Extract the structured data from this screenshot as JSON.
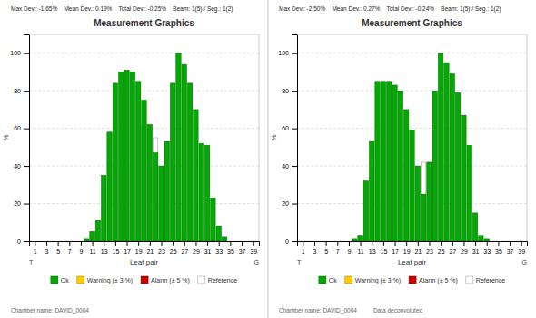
{
  "chart_data": [
    {
      "type": "bar",
      "title": "Measurement Graphics",
      "subtitle": "Max Dev.: -1.65%    Mean Dev.: 0.19%    Total Dev.: -0.25%    Beam: 1(5) / Seg.: 1(2)",
      "annotations": [
        "T",
        "G",
        "Chamber name: DAVID_0004"
      ],
      "x_label": "Leaf pair",
      "y_label": "%",
      "x": [
        1,
        2,
        3,
        4,
        5,
        6,
        7,
        8,
        9,
        10,
        11,
        12,
        13,
        14,
        15,
        16,
        17,
        18,
        19,
        20,
        21,
        22,
        23,
        24,
        25,
        26,
        27,
        28,
        29,
        30,
        31,
        32,
        33,
        34,
        35,
        36,
        37,
        38,
        39
      ],
      "series": [
        {
          "name": "Ok",
          "color": "#00aa00",
          "values": [
            0,
            0,
            0,
            0,
            0,
            0,
            0,
            0,
            0,
            1,
            5,
            11,
            35,
            58,
            84,
            90,
            91,
            90,
            85,
            75,
            62,
            47,
            40,
            53,
            84,
            100,
            94,
            84,
            70,
            52,
            51,
            23,
            8,
            2,
            0,
            0,
            0,
            0,
            0
          ]
        },
        {
          "name": "Warning (± 3 %)",
          "color": "#ffcc00",
          "values": [
            null,
            null,
            null,
            null,
            null,
            null,
            null,
            null,
            null,
            null,
            null,
            null,
            null,
            null,
            null,
            null,
            null,
            null,
            null,
            null,
            null,
            null,
            null,
            null,
            null,
            null,
            null,
            null,
            null,
            null,
            null,
            null,
            null,
            null,
            null,
            null,
            null,
            null,
            null
          ]
        },
        {
          "name": "Alarm (± 5 %)",
          "color": "#cc0000",
          "values": [
            null,
            null,
            null,
            null,
            null,
            null,
            null,
            null,
            null,
            null,
            null,
            null,
            null,
            null,
            null,
            null,
            null,
            null,
            null,
            null,
            null,
            null,
            null,
            null,
            null,
            null,
            null,
            null,
            null,
            null,
            null,
            null,
            null,
            null,
            null,
            null,
            null,
            null,
            null
          ]
        },
        {
          "name": "Reference",
          "color": "#ffffff",
          "values": [
            0,
            0,
            0,
            0,
            0,
            0,
            0,
            0,
            0,
            0,
            5,
            0,
            0,
            0,
            0,
            0,
            0,
            0,
            0,
            62,
            0,
            55,
            0,
            0,
            0,
            0,
            0,
            0,
            0,
            0,
            0,
            0,
            0,
            0,
            0,
            0,
            0,
            0,
            0
          ]
        }
      ],
      "xlim": [
        0,
        40
      ],
      "xticks": [
        1,
        3,
        5,
        7,
        9,
        11,
        13,
        15,
        17,
        19,
        21,
        23,
        25,
        27,
        29,
        31,
        33,
        35,
        37,
        39
      ],
      "ylim": [
        0,
        110
      ],
      "yticks": [
        0,
        20,
        40,
        60,
        80,
        100
      ],
      "grid": true,
      "legend": "bottom"
    },
    {
      "type": "bar",
      "title": "Measurement Graphics",
      "subtitle": "Max Dev.: -2.50%    Mean Dev.: 0.27%    Total Dev.: -0.24%    Beam: 1(5) / Seg.: 1(2)",
      "annotations": [
        "T",
        "G",
        "Chamber name: DAVID_0004          Data deconvoluted"
      ],
      "x_label": "Leaf pair",
      "y_label": "%",
      "x": [
        1,
        2,
        3,
        4,
        5,
        6,
        7,
        8,
        9,
        10,
        11,
        12,
        13,
        14,
        15,
        16,
        17,
        18,
        19,
        20,
        21,
        22,
        23,
        24,
        25,
        26,
        27,
        28,
        29,
        30,
        31,
        32,
        33,
        34,
        35,
        36,
        37,
        38,
        39
      ],
      "series": [
        {
          "name": "Ok",
          "color": "#00aa00",
          "values": [
            0,
            0,
            0,
            0,
            0,
            0,
            0,
            0,
            0,
            1,
            3,
            32,
            53,
            85,
            85,
            85,
            83,
            80,
            70,
            59,
            40,
            25,
            42,
            80,
            100,
            95,
            89,
            79,
            67,
            51,
            15,
            3,
            1,
            0,
            0,
            0,
            0,
            0,
            0
          ]
        },
        {
          "name": "Warning (± 3 %)",
          "color": "#ffcc00",
          "values": [
            null,
            null,
            null,
            null,
            null,
            null,
            null,
            null,
            null,
            null,
            null,
            null,
            null,
            null,
            null,
            null,
            null,
            null,
            null,
            null,
            null,
            null,
            null,
            null,
            null,
            null,
            null,
            null,
            null,
            null,
            null,
            null,
            null,
            null,
            null,
            null,
            null,
            null,
            null
          ]
        },
        {
          "name": "Alarm (± 5 %)",
          "color": "#cc0000",
          "values": [
            null,
            null,
            null,
            null,
            null,
            null,
            null,
            null,
            null,
            null,
            null,
            null,
            null,
            null,
            null,
            null,
            null,
            null,
            null,
            null,
            null,
            null,
            null,
            null,
            null,
            null,
            null,
            null,
            null,
            null,
            null,
            null,
            null,
            null,
            null,
            null,
            null,
            null,
            null
          ]
        },
        {
          "name": "Reference",
          "color": "#ffffff",
          "values": [
            0,
            0,
            0,
            0,
            0,
            0,
            0,
            0,
            0,
            0,
            3,
            0,
            0,
            0,
            0,
            0,
            0,
            0,
            0,
            0,
            0,
            42,
            0,
            0,
            0,
            0,
            0,
            0,
            0,
            0,
            0,
            0,
            0,
            0,
            0,
            0,
            0,
            0,
            0
          ]
        }
      ],
      "xlim": [
        0,
        40
      ],
      "xticks": [
        1,
        3,
        5,
        7,
        9,
        11,
        13,
        15,
        17,
        19,
        21,
        23,
        25,
        27,
        29,
        31,
        33,
        35,
        37,
        39
      ],
      "ylim": [
        0,
        110
      ],
      "yticks": [
        0,
        20,
        40,
        60,
        80,
        100
      ],
      "grid": true,
      "legend": "bottom"
    }
  ]
}
